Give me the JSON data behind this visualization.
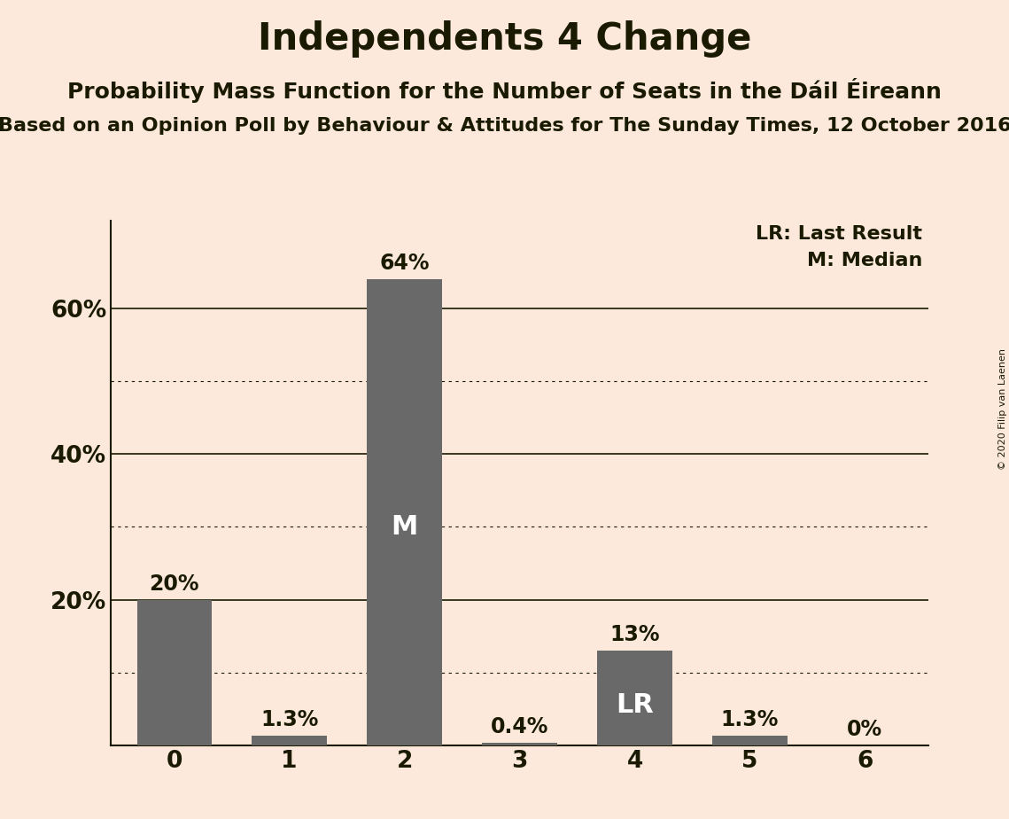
{
  "title": "Independents 4 Change",
  "subtitle1": "Probability Mass Function for the Number of Seats in the Dáil Éireann",
  "subtitle2": "Based on an Opinion Poll by Behaviour & Attitudes for The Sunday Times, 12 October 2016",
  "copyright": "© 2020 Filip van Laenen",
  "categories": [
    0,
    1,
    2,
    3,
    4,
    5,
    6
  ],
  "values": [
    0.2,
    0.013,
    0.64,
    0.004,
    0.13,
    0.013,
    0.0
  ],
  "bar_labels": [
    "20%",
    "1.3%",
    "64%",
    "0.4%",
    "13%",
    "1.3%",
    "0%"
  ],
  "bar_color": "#696969",
  "background_color": "#fce9dc",
  "text_color": "#1a1a00",
  "median_bar": 2,
  "lr_bar": 4,
  "median_label": "M",
  "lr_label": "LR",
  "legend_lr": "LR: Last Result",
  "legend_m": "M: Median",
  "ylim": [
    0,
    0.72
  ],
  "yticks": [
    0.0,
    0.2,
    0.4,
    0.6
  ],
  "ytick_labels": [
    "",
    "20%",
    "40%",
    "60%"
  ],
  "solid_gridlines": [
    0.0,
    0.2,
    0.4,
    0.6
  ],
  "dotted_gridlines": [
    0.1,
    0.3,
    0.5
  ],
  "title_fontsize": 30,
  "subtitle1_fontsize": 18,
  "subtitle2_fontsize": 16,
  "bar_label_fontsize": 17,
  "axis_tick_fontsize": 19,
  "bar_inner_label_fontsize": 22,
  "legend_fontsize": 16,
  "copyright_fontsize": 8,
  "bar_width": 0.65,
  "xlim": [
    -0.55,
    6.55
  ]
}
